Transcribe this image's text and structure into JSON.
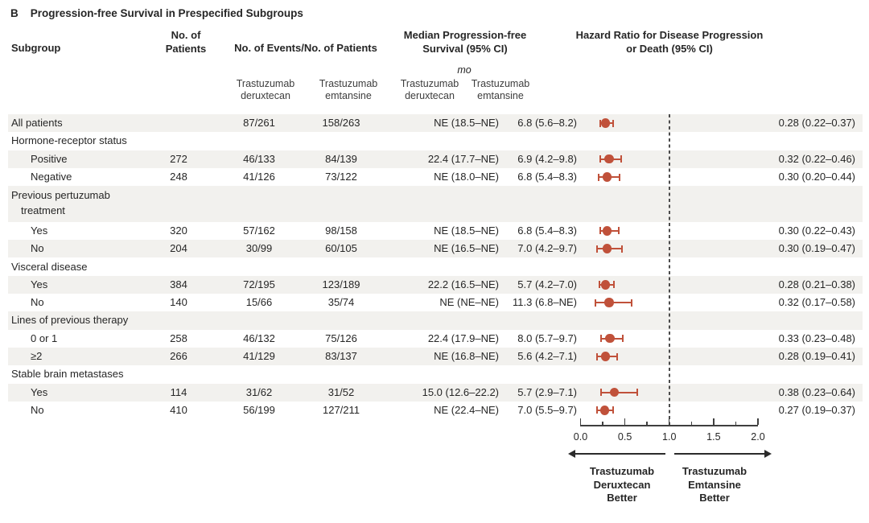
{
  "title": {
    "panel": "B",
    "text": "Progression-free Survival in Prespecified Subgroups"
  },
  "columns": {
    "subgroup": "Subgroup",
    "patients": "No. of\nPatients",
    "events": "No. of Events/No. of Patients",
    "pfs": "Median Progression-free\nSurvival (95% CI)",
    "hr": "Hazard Ratio for Disease Progression\nor Death (95% CI)",
    "unit": "mo",
    "drug1": "Trastuzumab\nderuxtecan",
    "drug2": "Trastuzumab\nemtansine"
  },
  "rows": [
    {
      "label": "All patients",
      "indent": false,
      "patients": "",
      "e1": "87/261",
      "e2": "158/263",
      "p1": "NE (18.5–NE)",
      "p2": "6.8 (5.6–8.2)",
      "hr_text": "0.28 (0.22–0.37)",
      "hr": 0.28,
      "lo": 0.22,
      "hi": 0.37
    },
    {
      "label": "Hormone-receptor status",
      "indent": false
    },
    {
      "label": "Positive",
      "indent": true,
      "patients": "272",
      "e1": "46/133",
      "e2": "84/139",
      "p1": "22.4 (17.7–NE)",
      "p2": "6.9 (4.2–9.8)",
      "hr_text": "0.32 (0.22–0.46)",
      "hr": 0.32,
      "lo": 0.22,
      "hi": 0.46
    },
    {
      "label": "Negative",
      "indent": true,
      "patients": "248",
      "e1": "41/126",
      "e2": "73/122",
      "p1": "NE (18.0–NE)",
      "p2": "6.8 (5.4–8.3)",
      "hr_text": "0.30 (0.20–0.44)",
      "hr": 0.3,
      "lo": 0.2,
      "hi": 0.44
    },
    {
      "label": "Previous pertuzumab",
      "label2": "treatment",
      "indent": false
    },
    {
      "label": "Yes",
      "indent": true,
      "patients": "320",
      "e1": "57/162",
      "e2": "98/158",
      "p1": "NE (18.5–NE)",
      "p2": "6.8 (5.4–8.3)",
      "hr_text": "0.30 (0.22–0.43)",
      "hr": 0.3,
      "lo": 0.22,
      "hi": 0.43
    },
    {
      "label": "No",
      "indent": true,
      "patients": "204",
      "e1": "30/99",
      "e2": "60/105",
      "p1": "NE (16.5–NE)",
      "p2": "7.0 (4.2–9.7)",
      "hr_text": "0.30 (0.19–0.47)",
      "hr": 0.3,
      "lo": 0.19,
      "hi": 0.47
    },
    {
      "label": "Visceral disease",
      "indent": false
    },
    {
      "label": "Yes",
      "indent": true,
      "patients": "384",
      "e1": "72/195",
      "e2": "123/189",
      "p1": "22.2 (16.5–NE)",
      "p2": "5.7 (4.2–7.0)",
      "hr_text": "0.28 (0.21–0.38)",
      "hr": 0.28,
      "lo": 0.21,
      "hi": 0.38
    },
    {
      "label": "No",
      "indent": true,
      "patients": "140",
      "e1": "15/66",
      "e2": "35/74",
      "p1": "NE (NE–NE)",
      "p2": "11.3 (6.8–NE)",
      "hr_text": "0.32 (0.17–0.58)",
      "hr": 0.32,
      "lo": 0.17,
      "hi": 0.58
    },
    {
      "label": "Lines of previous therapy",
      "indent": false
    },
    {
      "label": "0 or 1",
      "indent": true,
      "patients": "258",
      "e1": "46/132",
      "e2": "75/126",
      "p1": "22.4 (17.9–NE)",
      "p2": "8.0 (5.7–9.7)",
      "hr_text": "0.33 (0.23–0.48)",
      "hr": 0.33,
      "lo": 0.23,
      "hi": 0.48
    },
    {
      "label": "≥2",
      "indent": true,
      "patients": "266",
      "e1": "41/129",
      "e2": "83/137",
      "p1": "NE (16.8–NE)",
      "p2": "5.6 (4.2–7.1)",
      "hr_text": "0.28 (0.19–0.41)",
      "hr": 0.28,
      "lo": 0.19,
      "hi": 0.41
    },
    {
      "label": "Stable brain metastases",
      "indent": false
    },
    {
      "label": "Yes",
      "indent": true,
      "patients": "114",
      "e1": "31/62",
      "e2": "31/52",
      "p1": "15.0 (12.6–22.2)",
      "p2": "5.7 (2.9–7.1)",
      "hr_text": "0.38 (0.23–0.64)",
      "hr": 0.38,
      "lo": 0.23,
      "hi": 0.64
    },
    {
      "label": "No",
      "indent": true,
      "patients": "410",
      "e1": "56/199",
      "e2": "127/211",
      "p1": "NE (22.4–NE)",
      "p2": "7.0 (5.5–9.7)",
      "hr_text": "0.27 (0.19–0.37)",
      "hr": 0.27,
      "lo": 0.19,
      "hi": 0.37
    }
  ],
  "axis": {
    "tick_labels": [
      "0.0",
      "0.5",
      "1.0",
      "1.5",
      "2.0"
    ],
    "min": 0.0,
    "max": 2.0,
    "minor_step": 0.25,
    "reference": 1.0
  },
  "legend": {
    "left": [
      "Trastuzumab",
      "Deruxtecan",
      "Better"
    ],
    "right": [
      "Trastuzumab",
      "Emtansine",
      "Better"
    ]
  },
  "colors": {
    "marker": "#c0513a",
    "stripe": "#f2f1ee",
    "text": "#262626",
    "axis": "#3f3f3f"
  },
  "chart_data": {
    "type": "scatter",
    "subtype": "forest-plot",
    "title": "Progression-free Survival in Prespecified Subgroups",
    "xlabel": "Hazard Ratio for Disease Progression or Death (95% CI)",
    "xlim": [
      0.0,
      2.0
    ],
    "x_ticks": [
      0.0,
      0.5,
      1.0,
      1.5,
      2.0
    ],
    "reference_line": 1.0,
    "legend_position": "bottom",
    "direction_labels": {
      "left": "Trastuzumab Deruxtecan Better",
      "right": "Trastuzumab Emtansine Better"
    },
    "points": [
      {
        "subgroup": "All patients",
        "hr": 0.28,
        "ci_low": 0.22,
        "ci_high": 0.37
      },
      {
        "subgroup": "Hormone-receptor status: Positive",
        "hr": 0.32,
        "ci_low": 0.22,
        "ci_high": 0.46
      },
      {
        "subgroup": "Hormone-receptor status: Negative",
        "hr": 0.3,
        "ci_low": 0.2,
        "ci_high": 0.44
      },
      {
        "subgroup": "Previous pertuzumab treatment: Yes",
        "hr": 0.3,
        "ci_low": 0.22,
        "ci_high": 0.43
      },
      {
        "subgroup": "Previous pertuzumab treatment: No",
        "hr": 0.3,
        "ci_low": 0.19,
        "ci_high": 0.47
      },
      {
        "subgroup": "Visceral disease: Yes",
        "hr": 0.28,
        "ci_low": 0.21,
        "ci_high": 0.38
      },
      {
        "subgroup": "Visceral disease: No",
        "hr": 0.32,
        "ci_low": 0.17,
        "ci_high": 0.58
      },
      {
        "subgroup": "Lines of previous therapy: 0 or 1",
        "hr": 0.33,
        "ci_low": 0.23,
        "ci_high": 0.48
      },
      {
        "subgroup": "Lines of previous therapy: ≥2",
        "hr": 0.28,
        "ci_low": 0.19,
        "ci_high": 0.41
      },
      {
        "subgroup": "Stable brain metastases: Yes",
        "hr": 0.38,
        "ci_low": 0.23,
        "ci_high": 0.64
      },
      {
        "subgroup": "Stable brain metastases: No",
        "hr": 0.27,
        "ci_low": 0.19,
        "ci_high": 0.37
      }
    ]
  }
}
